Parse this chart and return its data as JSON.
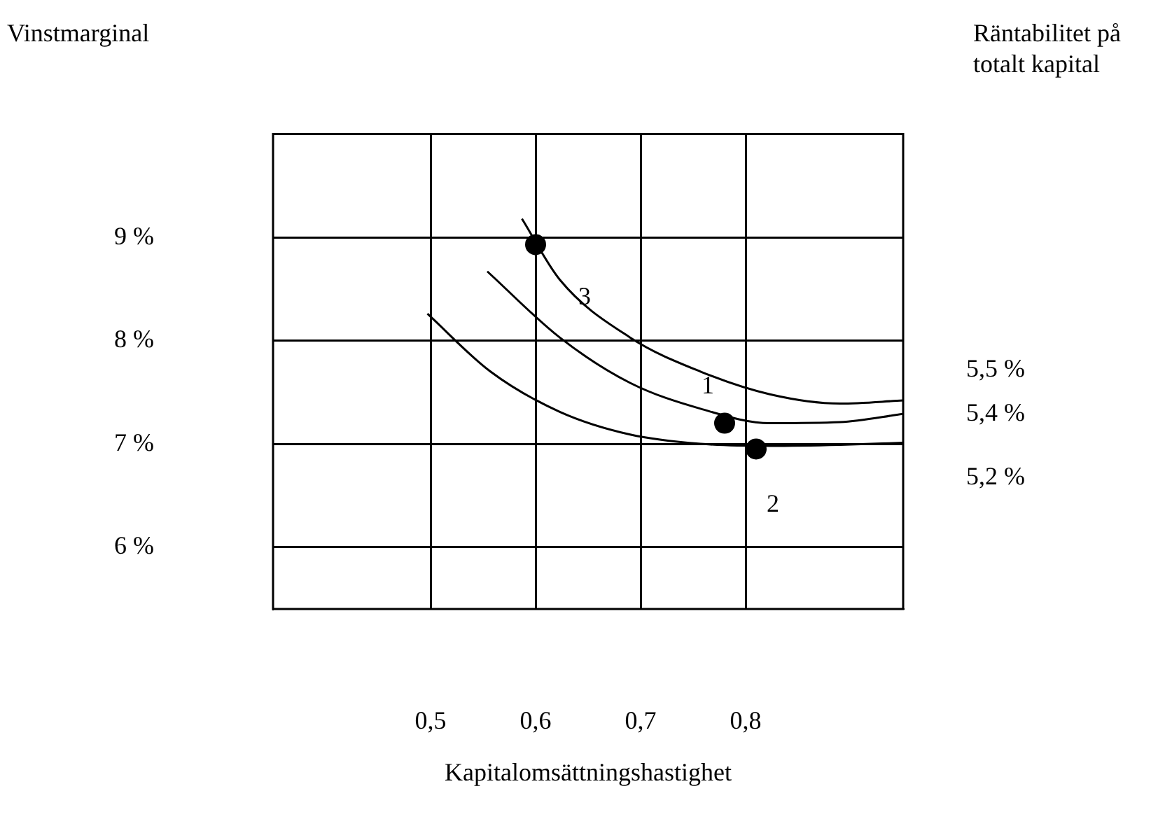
{
  "chart_data": {
    "type": "line",
    "ylabel": "Vinstmarginal",
    "y2label": "Räntabilitet på totalt kapital",
    "xlabel": "Kapitalomsättningshastighet",
    "xlim": [
      0.35,
      0.95
    ],
    "xticks": [
      {
        "value": 0.5,
        "label": "0,5"
      },
      {
        "value": 0.6,
        "label": "0,6"
      },
      {
        "value": 0.7,
        "label": "0,7"
      },
      {
        "value": 0.8,
        "label": "0,8"
      }
    ],
    "ylim": [
      5.4,
      10
    ],
    "yticks": [
      {
        "value": 6,
        "label": "6 %"
      },
      {
        "value": 7,
        "label": "7 %"
      },
      {
        "value": 8,
        "label": "8 %"
      },
      {
        "value": 9,
        "label": "9 %"
      }
    ],
    "grid": true,
    "legend": false,
    "line_style": "solid",
    "series": [
      {
        "name": "5,5 %",
        "color": "#000000",
        "marker": "none",
        "x": [
          0.587,
          0.623,
          0.69,
          0.757,
          0.823,
          0.89,
          0.95
        ],
        "values": [
          9.18,
          8.59,
          8.03,
          7.7,
          7.48,
          7.39,
          7.42
        ]
      },
      {
        "name": "5,4 %",
        "color": "#000000",
        "marker": "none",
        "x": [
          0.554,
          0.623,
          0.69,
          0.757,
          0.823,
          0.89,
          0.95
        ],
        "values": [
          8.67,
          8.03,
          7.59,
          7.34,
          7.2,
          7.21,
          7.29
        ]
      },
      {
        "name": "5,2 %",
        "color": "#000000",
        "marker": "none",
        "x": [
          0.497,
          0.557,
          0.623,
          0.69,
          0.757,
          0.823,
          0.89,
          0.95
        ],
        "values": [
          8.26,
          7.7,
          7.31,
          7.09,
          7.0,
          6.98,
          6.99,
          7.01
        ]
      },
      {
        "type": "scatter",
        "color": "#000000",
        "marker": "circle",
        "x": [
          0.6,
          0.78,
          0.81
        ],
        "values": [
          8.93,
          7.2,
          6.95
        ]
      }
    ],
    "annotations": [
      {
        "text": "3",
        "x": 0.6,
        "y": 8.93
      },
      {
        "text": "1",
        "x": 0.78,
        "y": 7.2
      },
      {
        "text": "2",
        "x": 0.81,
        "y": 6.95
      }
    ]
  }
}
